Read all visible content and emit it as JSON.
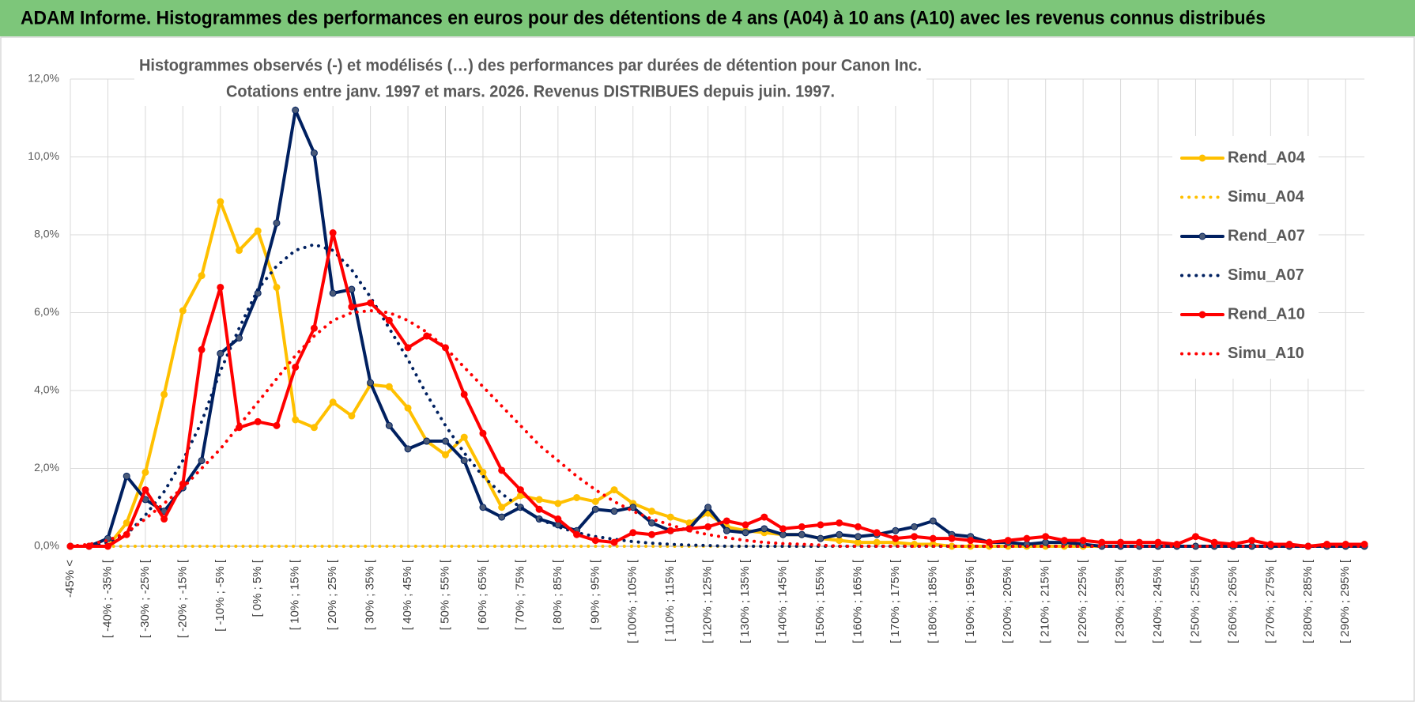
{
  "chart_data": {
    "type": "line",
    "title": "ADAM Informe. Histogrammes des performances en euros pour des détentions de 4 ans (A04) à 10 ans (A10) avec les revenus connus distribués",
    "subtitle": [
      "Histogrammes observés (-) et modélisés (…) des performances par durées de détention pour Canon Inc.",
      "Cotations entre janv. 1997 et mars. 2026.  Revenus DISTRIBUES depuis juin. 1997."
    ],
    "categories": [
      "-45% <",
      null,
      "[ -40% ; -35% [",
      null,
      "[ -30% ; -25% [",
      null,
      "[ -20% ; -15% [",
      null,
      "[ -10% ; -5% [",
      null,
      "[ 0% ; 5% [",
      null,
      "[ 10% ; 15% [",
      null,
      "[ 20% ; 25% [",
      null,
      "[ 30% ; 35% [",
      null,
      "[ 40% ; 45% [",
      null,
      "[ 50% ; 55% [",
      null,
      "[ 60% ; 65% [",
      null,
      "[ 70% ; 75% [",
      null,
      "[ 80% ; 85% [",
      null,
      "[ 90% ; 95% [",
      null,
      "[ 100% ; 105% [",
      null,
      "[ 110% ; 115% [",
      null,
      "[ 120% ; 125% [",
      null,
      "[ 130% ; 135% [",
      null,
      "[ 140% ; 145% [",
      null,
      "[ 150% ; 155% [",
      null,
      "[ 160% ; 165% [",
      null,
      "[ 170% ; 175% [",
      null,
      "[ 180% ; 185% [",
      null,
      "[ 190% ; 195% [",
      null,
      "[ 200% ; 205% [",
      null,
      "[ 210% ; 215% [",
      null,
      "[ 220% ; 225% [",
      null,
      "[ 230% ; 235% [",
      null,
      "[ 240% ; 245% [",
      null,
      "[ 250% ; 255% [",
      null,
      "[ 260% ; 265% [",
      null,
      "[ 270% ; 275% [",
      null,
      "[ 280% ; 285% [",
      null,
      "[ 290% ; 295% [",
      null
    ],
    "series": [
      {
        "name": "Rend_A04",
        "color": "#FFC000",
        "style": "solid",
        "markers": true,
        "values": [
          0,
          0,
          0,
          0.6,
          1.9,
          3.9,
          6.05,
          6.95,
          8.85,
          7.6,
          8.1,
          6.65,
          3.25,
          3.05,
          3.7,
          3.35,
          4.15,
          4.1,
          3.55,
          2.7,
          2.35,
          2.8,
          1.9,
          1.0,
          1.3,
          1.2,
          1.1,
          1.25,
          1.15,
          1.45,
          1.1,
          0.9,
          0.75,
          0.6,
          0.85,
          0.5,
          0.4,
          0.35,
          0.3,
          0.3,
          0.2,
          0.15,
          0.1,
          0.1,
          0.1,
          0.05,
          0.05,
          0,
          0,
          0,
          0,
          0,
          0,
          0,
          0,
          0,
          0,
          0,
          0,
          0,
          0,
          0,
          0,
          0,
          0,
          0,
          0,
          0,
          0,
          0
        ]
      },
      {
        "name": "Simu_A04",
        "color": "#FFC000",
        "style": "dotted",
        "markers": false,
        "values": [
          0,
          0,
          0,
          0,
          0,
          0,
          0,
          0,
          0,
          0,
          0,
          0,
          0,
          0,
          0,
          0,
          0,
          0,
          0,
          0,
          0,
          0,
          0,
          0,
          0,
          0,
          0,
          0,
          0,
          0,
          0,
          0,
          0,
          0,
          0,
          0,
          0,
          0,
          0,
          0,
          0,
          0,
          0,
          0,
          0,
          0,
          0,
          0,
          0,
          0,
          0,
          0,
          0,
          0,
          0,
          0,
          0,
          0,
          0,
          0,
          0,
          0,
          0,
          0,
          0,
          0,
          0,
          0,
          0,
          0
        ]
      },
      {
        "name": "Rend_A07",
        "color": "#002060",
        "marker_fill": "#4a5a78",
        "style": "solid",
        "markers": true,
        "values": [
          0,
          0,
          0.2,
          1.8,
          1.2,
          0.9,
          1.5,
          2.2,
          4.95,
          5.35,
          6.5,
          8.3,
          11.2,
          10.1,
          6.5,
          6.6,
          4.2,
          3.1,
          2.5,
          2.7,
          2.7,
          2.2,
          1.0,
          0.75,
          1.0,
          0.7,
          0.55,
          0.4,
          0.95,
          0.9,
          1.0,
          0.6,
          0.4,
          0.45,
          1.0,
          0.4,
          0.35,
          0.45,
          0.3,
          0.3,
          0.2,
          0.3,
          0.25,
          0.3,
          0.4,
          0.5,
          0.65,
          0.3,
          0.25,
          0.1,
          0.1,
          0.05,
          0.1,
          0.1,
          0.05,
          0,
          0,
          0,
          0,
          0,
          0,
          0,
          0,
          0,
          0,
          0,
          0,
          0,
          0,
          0
        ]
      },
      {
        "name": "Simu_A07",
        "color": "#002060",
        "style": "dotted",
        "markers": false,
        "values": [
          0,
          0,
          0.1,
          0.3,
          0.8,
          1.4,
          2.2,
          3.2,
          4.5,
          5.6,
          6.6,
          7.2,
          7.6,
          7.75,
          7.6,
          7.1,
          6.4,
          5.6,
          4.8,
          3.9,
          3.1,
          2.4,
          1.8,
          1.35,
          1.0,
          0.7,
          0.5,
          0.35,
          0.25,
          0.18,
          0.12,
          0.08,
          0.05,
          0.03,
          0.02,
          0,
          0,
          0,
          0,
          0,
          0,
          0,
          0,
          0,
          0,
          0,
          0,
          0,
          0,
          0,
          0,
          0,
          0,
          0,
          0,
          0,
          0,
          0,
          0,
          0,
          0,
          0,
          0,
          0,
          0,
          0,
          0,
          0,
          0,
          0
        ]
      },
      {
        "name": "Rend_A10",
        "color": "#FF0000",
        "style": "solid",
        "markers": true,
        "values": [
          0,
          0,
          0,
          0.3,
          1.45,
          0.7,
          1.6,
          5.05,
          6.65,
          3.05,
          3.2,
          3.1,
          4.6,
          5.6,
          8.05,
          6.15,
          6.25,
          5.8,
          5.1,
          5.4,
          5.1,
          3.9,
          2.9,
          1.95,
          1.45,
          0.95,
          0.7,
          0.3,
          0.15,
          0.1,
          0.35,
          0.3,
          0.4,
          0.45,
          0.5,
          0.65,
          0.55,
          0.75,
          0.45,
          0.5,
          0.55,
          0.6,
          0.5,
          0.35,
          0.2,
          0.25,
          0.2,
          0.2,
          0.15,
          0.1,
          0.15,
          0.2,
          0.25,
          0.15,
          0.15,
          0.1,
          0.1,
          0.1,
          0.1,
          0.05,
          0.25,
          0.1,
          0.05,
          0.15,
          0.05,
          0.05,
          0,
          0.05,
          0.05,
          0.05
        ]
      },
      {
        "name": "Simu_A10",
        "color": "#FF0000",
        "style": "dotted",
        "markers": false,
        "values": [
          0,
          0.05,
          0.15,
          0.35,
          0.7,
          1.1,
          1.5,
          2.0,
          2.5,
          3.1,
          3.7,
          4.3,
          4.9,
          5.4,
          5.8,
          6.0,
          6.05,
          6.0,
          5.8,
          5.5,
          5.1,
          4.6,
          4.1,
          3.6,
          3.1,
          2.6,
          2.2,
          1.8,
          1.45,
          1.15,
          0.9,
          0.7,
          0.55,
          0.4,
          0.3,
          0.22,
          0.15,
          0.1,
          0.07,
          0.05,
          0.03,
          0,
          0,
          0,
          0,
          0,
          0,
          0,
          0,
          0,
          0,
          0,
          0,
          0,
          0,
          0,
          0,
          0,
          0,
          0,
          0,
          0,
          0,
          0,
          0,
          0,
          0,
          0,
          0,
          0
        ]
      }
    ],
    "ylim": [
      0,
      12
    ],
    "yticks": [
      {
        "value": 0,
        "label": "0,0%"
      },
      {
        "value": 2,
        "label": "2,0%"
      },
      {
        "value": 4,
        "label": "4,0%"
      },
      {
        "value": 6,
        "label": "6,0%"
      },
      {
        "value": 8,
        "label": "8,0%"
      },
      {
        "value": 10,
        "label": "10,0%"
      },
      {
        "value": 12,
        "label": "12,0%"
      }
    ],
    "grid": true,
    "legend": "right"
  }
}
